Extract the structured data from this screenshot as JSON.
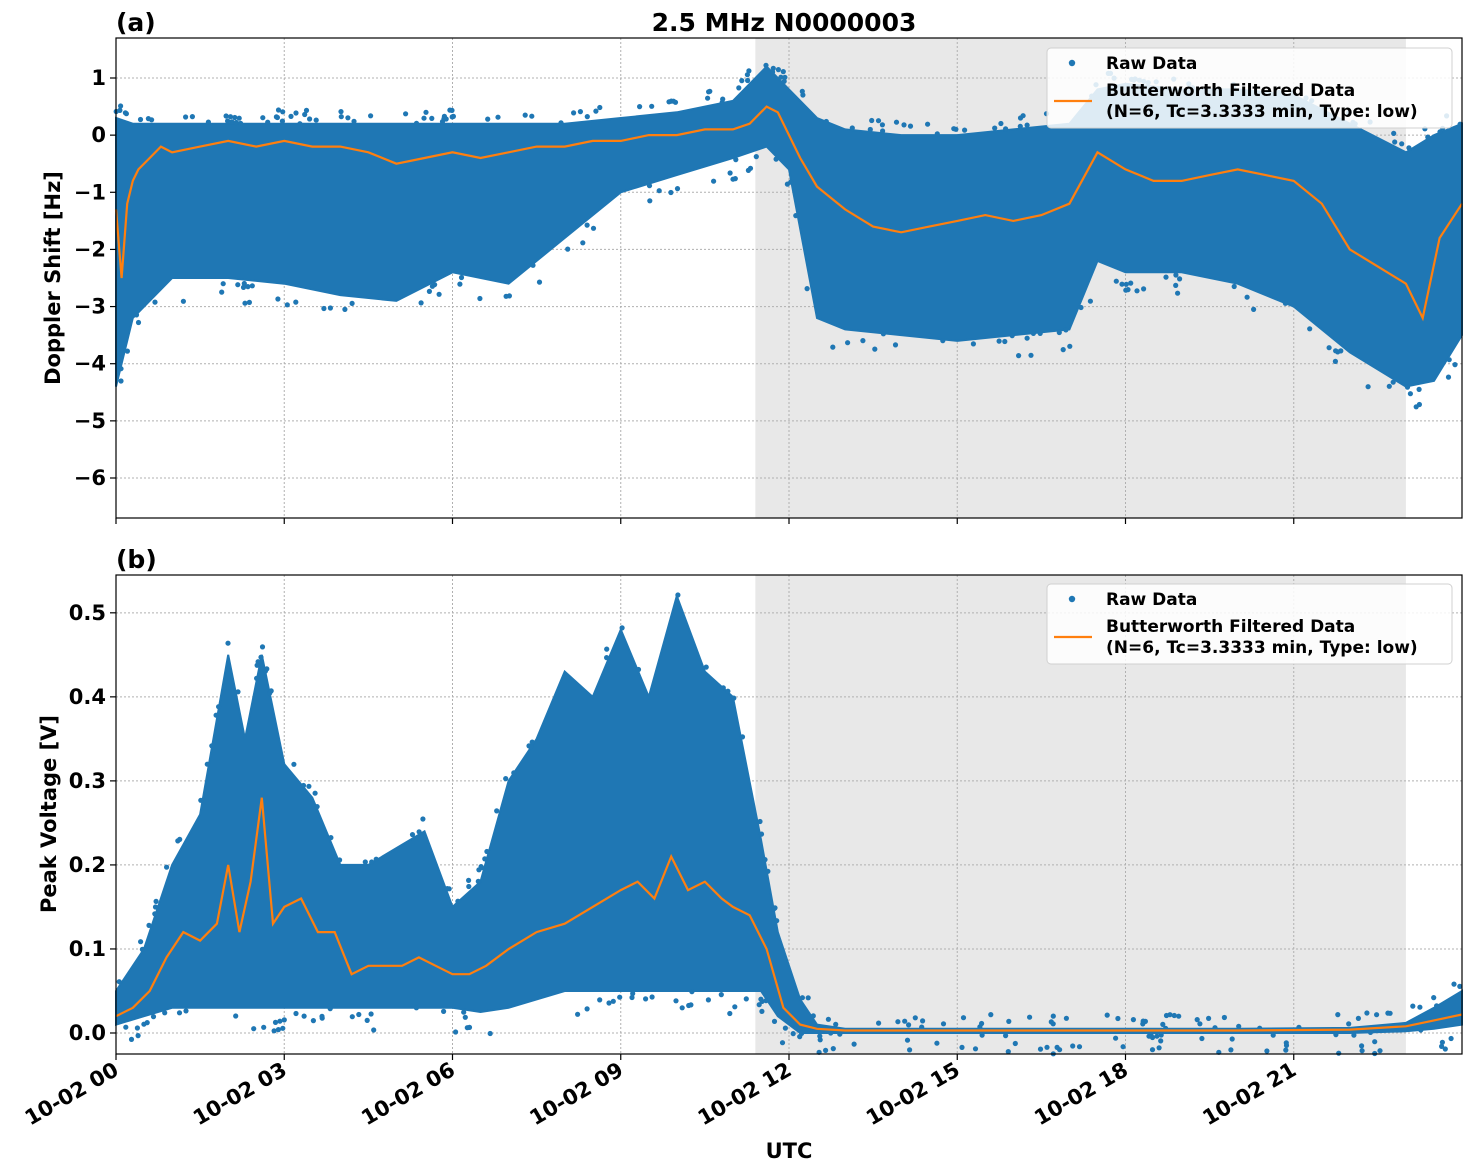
{
  "colors": {
    "raw": "#1f77b4",
    "filtered": "#ff7f0e",
    "night_shade": "#e8e8e8",
    "grid": "#b0b0b0"
  },
  "xlabel": "UTC",
  "x_ticks": [
    "10-02 00",
    "10-02 03",
    "10-02 06",
    "10-02 09",
    "10-02 12",
    "10-02 15",
    "10-02 18",
    "10-02 21"
  ],
  "chart_data": [
    {
      "type": "scatter",
      "panel_label": "(a)",
      "title": "2.5 MHz N0000003",
      "ylabel": "Doppler Shift [Hz]",
      "xlim_hours": [
        0,
        24
      ],
      "ylim": [
        -6.7,
        1.7
      ],
      "y_ticks": [
        1,
        0,
        -1,
        -2,
        -3,
        -4,
        -5,
        -6
      ],
      "y_tick_labels": [
        "1",
        "0",
        "−1",
        "−2",
        "−3",
        "−4",
        "−5",
        "−6"
      ],
      "shaded_hours": [
        11.4,
        23.0
      ],
      "grid": true,
      "legend_position": "upper right",
      "legend": [
        "Raw Data",
        "Butterworth Filtered Data",
        "(N=6, Tc=3.3333 min, Type: low)"
      ],
      "series": [
        {
          "name": "Butterworth Filtered Data",
          "type": "line",
          "hours": [
            0,
            0.1,
            0.2,
            0.3,
            0.4,
            0.6,
            0.8,
            1.0,
            1.5,
            2.0,
            2.5,
            3.0,
            3.5,
            4.0,
            4.5,
            5.0,
            5.5,
            6.0,
            6.5,
            7.0,
            7.5,
            8.0,
            8.5,
            9.0,
            9.5,
            10.0,
            10.5,
            11.0,
            11.3,
            11.6,
            11.8,
            12.0,
            12.2,
            12.5,
            13.0,
            13.5,
            14.0,
            14.5,
            15.0,
            15.5,
            16.0,
            16.5,
            17.0,
            17.5,
            18.0,
            18.5,
            19.0,
            19.5,
            20.0,
            20.5,
            21.0,
            21.5,
            22.0,
            22.5,
            23.0,
            23.3,
            23.6,
            24.0
          ],
          "values": [
            -1.3,
            -2.5,
            -1.2,
            -0.8,
            -0.6,
            -0.4,
            -0.2,
            -0.3,
            -0.2,
            -0.1,
            -0.2,
            -0.1,
            -0.2,
            -0.2,
            -0.3,
            -0.5,
            -0.4,
            -0.3,
            -0.4,
            -0.3,
            -0.2,
            -0.2,
            -0.1,
            -0.1,
            0.0,
            0.0,
            0.1,
            0.1,
            0.2,
            0.5,
            0.4,
            0.0,
            -0.4,
            -0.9,
            -1.3,
            -1.6,
            -1.7,
            -1.6,
            -1.5,
            -1.4,
            -1.5,
            -1.4,
            -1.2,
            -0.3,
            -0.6,
            -0.8,
            -0.8,
            -0.7,
            -0.6,
            -0.7,
            -0.8,
            -1.2,
            -2.0,
            -2.3,
            -2.6,
            -3.2,
            -1.8,
            -1.2
          ]
        },
        {
          "name": "Raw Data",
          "type": "scatter_band",
          "hours": [
            0,
            0.3,
            1.0,
            2.0,
            3.0,
            4.0,
            5.0,
            6.0,
            7.0,
            8.0,
            9.0,
            10.0,
            11.0,
            11.6,
            12.0,
            12.5,
            13.0,
            14.0,
            15.0,
            16.0,
            17.0,
            17.5,
            18.0,
            19.0,
            20.0,
            21.0,
            22.0,
            23.0,
            23.5,
            24.0
          ],
          "upper": [
            0.3,
            0.2,
            0.2,
            0.2,
            0.2,
            0.2,
            0.2,
            0.2,
            0.2,
            0.2,
            0.3,
            0.4,
            0.6,
            1.2,
            0.8,
            0.3,
            0.1,
            0.0,
            0.0,
            0.1,
            0.2,
            0.8,
            0.9,
            0.8,
            0.8,
            0.7,
            0.2,
            -0.3,
            0.0,
            0.2
          ],
          "lower": [
            -4.4,
            -3.2,
            -2.5,
            -2.5,
            -2.6,
            -2.8,
            -2.9,
            -2.4,
            -2.6,
            -1.8,
            -1.0,
            -0.7,
            -0.4,
            -0.2,
            -0.6,
            -3.2,
            -3.4,
            -3.5,
            -3.6,
            -3.5,
            -3.4,
            -2.2,
            -2.4,
            -2.4,
            -2.6,
            -3.0,
            -3.8,
            -4.4,
            -4.3,
            -3.5
          ]
        }
      ]
    },
    {
      "type": "scatter",
      "panel_label": "(b)",
      "ylabel": "Peak Voltage [V]",
      "xlim_hours": [
        0,
        24
      ],
      "ylim": [
        -0.025,
        0.545
      ],
      "y_ticks": [
        0.5,
        0.4,
        0.3,
        0.2,
        0.1,
        0.0
      ],
      "y_tick_labels": [
        "0.5",
        "0.4",
        "0.3",
        "0.2",
        "0.1",
        "0.0"
      ],
      "shaded_hours": [
        11.4,
        23.0
      ],
      "grid": true,
      "legend_position": "upper right",
      "legend": [
        "Raw Data",
        "Butterworth Filtered Data",
        "(N=6, Tc=3.3333 min, Type: low)"
      ],
      "series": [
        {
          "name": "Butterworth Filtered Data",
          "type": "line",
          "hours": [
            0,
            0.3,
            0.6,
            0.9,
            1.2,
            1.5,
            1.8,
            2.0,
            2.2,
            2.4,
            2.6,
            2.8,
            3.0,
            3.3,
            3.6,
            3.9,
            4.2,
            4.5,
            4.8,
            5.1,
            5.4,
            5.7,
            6.0,
            6.3,
            6.6,
            7.0,
            7.5,
            8.0,
            8.5,
            9.0,
            9.3,
            9.6,
            9.9,
            10.2,
            10.5,
            10.8,
            11.0,
            11.3,
            11.6,
            11.9,
            12.2,
            12.5,
            13.0,
            14.0,
            16.0,
            18.0,
            20.0,
            22.0,
            23.0,
            23.5,
            24.0
          ],
          "values": [
            0.02,
            0.03,
            0.05,
            0.09,
            0.12,
            0.11,
            0.13,
            0.2,
            0.12,
            0.18,
            0.28,
            0.13,
            0.15,
            0.16,
            0.12,
            0.12,
            0.07,
            0.08,
            0.08,
            0.08,
            0.09,
            0.08,
            0.07,
            0.07,
            0.08,
            0.1,
            0.12,
            0.13,
            0.15,
            0.17,
            0.18,
            0.16,
            0.21,
            0.17,
            0.18,
            0.16,
            0.15,
            0.14,
            0.1,
            0.03,
            0.01,
            0.005,
            0.003,
            0.003,
            0.003,
            0.003,
            0.003,
            0.004,
            0.008,
            0.015,
            0.022
          ]
        },
        {
          "name": "Raw Data",
          "type": "scatter_band",
          "hours": [
            0,
            0.5,
            1.0,
            1.5,
            2.0,
            2.3,
            2.6,
            3.0,
            3.5,
            4.0,
            4.5,
            5.0,
            5.5,
            6.0,
            6.5,
            7.0,
            7.5,
            8.0,
            8.5,
            9.0,
            9.5,
            10.0,
            10.5,
            11.0,
            11.5,
            11.8,
            12.2,
            12.5,
            13.0,
            16.0,
            20.0,
            22.0,
            23.0,
            23.5,
            24.0
          ],
          "upper": [
            0.05,
            0.1,
            0.2,
            0.26,
            0.45,
            0.35,
            0.45,
            0.32,
            0.28,
            0.2,
            0.2,
            0.22,
            0.24,
            0.15,
            0.18,
            0.3,
            0.35,
            0.43,
            0.4,
            0.48,
            0.4,
            0.52,
            0.43,
            0.4,
            0.23,
            0.12,
            0.04,
            0.01,
            0.005,
            0.005,
            0.005,
            0.006,
            0.012,
            0.03,
            0.05
          ],
          "lower": [
            0.01,
            0.02,
            0.03,
            0.03,
            0.03,
            0.03,
            0.03,
            0.03,
            0.03,
            0.03,
            0.03,
            0.03,
            0.03,
            0.03,
            0.025,
            0.03,
            0.04,
            0.05,
            0.05,
            0.05,
            0.05,
            0.05,
            0.05,
            0.05,
            0.05,
            0.02,
            0.0,
            0.0,
            0.0,
            0.0,
            0.0,
            0.0,
            0.002,
            0.005,
            0.01
          ]
        }
      ]
    }
  ]
}
